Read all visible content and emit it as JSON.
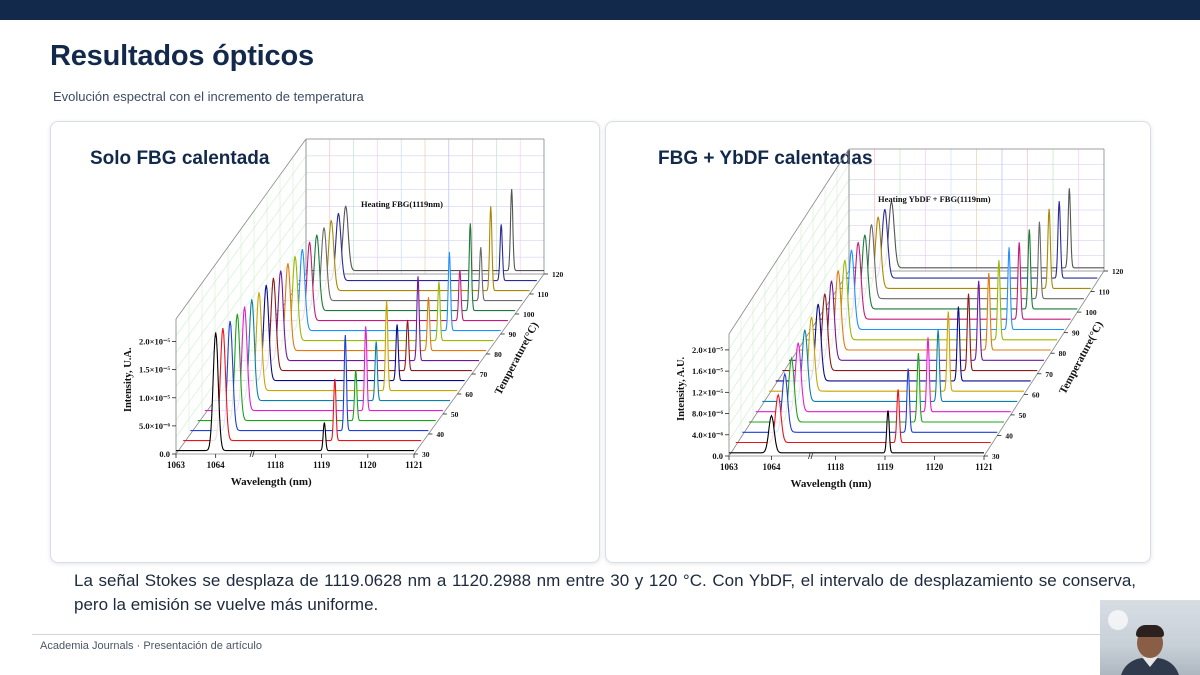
{
  "slide": {
    "title": "Resultados ópticos",
    "subtitle": "Evolución espectral con el incremento de temperatura",
    "caption": "La señal Stokes se desplaza de 1119.0628 nm a 1120.2988 nm entre 30 y 120 °C. Con YbDF, el intervalo de desplazamiento se conserva, pero la emisión se vuelve más uniforme.",
    "footer": "Academia Journals · Presentación de artículo"
  },
  "chart_data": [
    {
      "type": "line",
      "panel_title": "Solo FBG calentada",
      "title": "Heating FBG(1119nm)",
      "xlabel": "Wavelength (nm)",
      "ylabel": "Intensity, U.A.",
      "zlabel": "Temperature(°C)",
      "x_ticks": [
        "1063",
        "1064",
        "1118",
        "1119",
        "1120",
        "1121"
      ],
      "y_ticks": [
        "0.0",
        "5.0×10⁻⁶",
        "1.0×10⁻⁵",
        "1.5×10⁻⁵",
        "2.0×10⁻⁵"
      ],
      "z_ticks": [
        "30",
        "40",
        "50",
        "60",
        "70",
        "80",
        "90",
        "100",
        "110",
        "120"
      ],
      "ylim": [
        0,
        2.4e-05
      ],
      "temperatures": [
        30,
        35,
        40,
        45,
        50,
        55,
        60,
        65,
        70,
        75,
        80,
        85,
        90,
        95,
        100,
        105,
        110,
        115,
        120
      ],
      "pump_peak_nm": 1064.0,
      "pump_peak_values": [
        2.1e-05,
        2e-05,
        1.95e-05,
        1.9e-05,
        1.85e-05,
        1.8e-05,
        1.75e-05,
        1.7e-05,
        1.65e-05,
        1.6e-05,
        1.55e-05,
        1.5e-05,
        1.45e-05,
        1.4e-05,
        1.35e-05,
        1.3e-05,
        1.25e-05,
        1.2e-05,
        1.15e-05
      ],
      "stokes_peak_nm": [
        1119.06,
        1119.13,
        1119.2,
        1119.27,
        1119.33,
        1119.4,
        1119.47,
        1119.54,
        1119.61,
        1119.68,
        1119.75,
        1119.82,
        1119.89,
        1119.96,
        1120.03,
        1120.1,
        1120.16,
        1120.23,
        1120.3
      ],
      "stokes_peak_values": [
        5e-06,
        1.1e-05,
        1.7e-05,
        9e-06,
        1.5e-05,
        1.05e-05,
        1.6e-05,
        1e-05,
        9e-06,
        1.5e-05,
        9.5e-06,
        1.05e-05,
        1.4e-05,
        9e-06,
        1.55e-05,
        9.5e-06,
        1.5e-05,
        1e-05,
        1.45e-05
      ],
      "colors": [
        "#000000",
        "#e8141c",
        "#1f3fd6",
        "#1aa31a",
        "#e11fd2",
        "#0e7fa6",
        "#c9a400",
        "#0a0a8a",
        "#8b1a1a",
        "#6b1aa0",
        "#e07a10",
        "#9ab800",
        "#1e90ff",
        "#c21c78",
        "#1b7a3a",
        "#6a6a6a",
        "#aa8800",
        "#2a2a9a",
        "#555555"
      ]
    },
    {
      "type": "line",
      "panel_title": "FBG + YbDF calentadas",
      "title": "Heating YbDF + FBG(1119nm)",
      "xlabel": "Wavelength (nm)",
      "ylabel": "Intensity, A.U.",
      "zlabel": "Temperature(°C)",
      "x_ticks": [
        "1063",
        "1064",
        "1118",
        "1119",
        "1120",
        "1121"
      ],
      "y_ticks": [
        "0.0",
        "4.0×10⁻⁶",
        "8.0×10⁻⁶",
        "1.2×10⁻⁵",
        "1.6×10⁻⁵",
        "2.0×10⁻⁵"
      ],
      "z_ticks": [
        "30",
        "40",
        "50",
        "60",
        "70",
        "80",
        "90",
        "100",
        "110",
        "120"
      ],
      "ylim": [
        0,
        2.3e-05
      ],
      "temperatures": [
        30,
        35,
        40,
        45,
        50,
        55,
        60,
        65,
        70,
        75,
        80,
        85,
        90,
        95,
        100,
        105,
        110,
        115,
        120
      ],
      "pump_peak_nm": 1064.0,
      "pump_peak_values": [
        7e-06,
        9e-06,
        1.1e-05,
        1.2e-05,
        1.3e-05,
        1.35e-05,
        1.4e-05,
        1.45e-05,
        1.45e-05,
        1.5e-05,
        1.5e-05,
        1.5e-05,
        1.5e-05,
        1.45e-05,
        1.4e-05,
        1.4e-05,
        1.35e-05,
        1.3e-05,
        1.25e-05
      ],
      "stokes_peak_nm": [
        1119.06,
        1119.13,
        1119.2,
        1119.27,
        1119.33,
        1119.4,
        1119.47,
        1119.54,
        1119.61,
        1119.68,
        1119.75,
        1119.82,
        1119.89,
        1119.96,
        1120.03,
        1120.1,
        1120.16,
        1120.23,
        1120.3
      ],
      "stokes_peak_values": [
        8e-06,
        1e-05,
        1.2e-05,
        1.3e-05,
        1.4e-05,
        1.35e-05,
        1.5e-05,
        1.4e-05,
        1.45e-05,
        1.5e-05,
        1.45e-05,
        1.5e-05,
        1.55e-05,
        1.45e-05,
        1.5e-05,
        1.45e-05,
        1.5e-05,
        1.45e-05,
        1.5e-05
      ],
      "colors": [
        "#000000",
        "#e8141c",
        "#1f3fd6",
        "#1aa31a",
        "#e11fd2",
        "#0e7fa6",
        "#c9a400",
        "#0a0a8a",
        "#8b1a1a",
        "#6b1aa0",
        "#e07a10",
        "#9ab800",
        "#1e90ff",
        "#c21c78",
        "#1b7a3a",
        "#6a6a6a",
        "#aa8800",
        "#2a2a9a",
        "#555555"
      ]
    }
  ]
}
